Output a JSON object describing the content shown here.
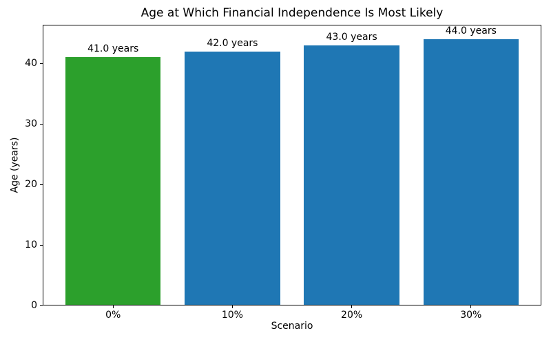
{
  "chart_data": {
    "type": "bar",
    "title": "Age at Which Financial Independence Is Most Likely",
    "xlabel": "Scenario",
    "ylabel": "Age (years)",
    "categories": [
      "0%",
      "10%",
      "20%",
      "30%"
    ],
    "values": [
      41.0,
      42.0,
      43.0,
      44.0
    ],
    "bar_labels": [
      "41.0 years",
      "42.0 years",
      "43.0 years",
      "44.0 years"
    ],
    "bar_colors": [
      "#2ca02c",
      "#1f77b4",
      "#1f77b4",
      "#1f77b4"
    ],
    "ylim": [
      0,
      46.4
    ],
    "yticks": [
      0,
      10,
      20,
      30,
      40
    ],
    "grid": false,
    "legend_position": "none",
    "spine_color": "#000000",
    "background_color": "#ffffff"
  }
}
